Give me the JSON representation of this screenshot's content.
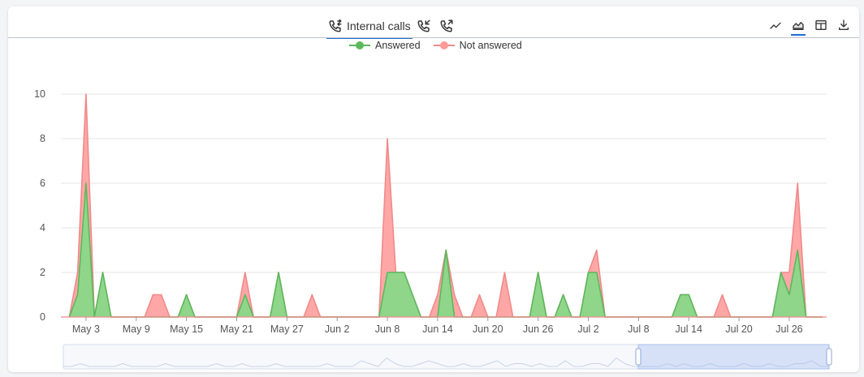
{
  "tabs": [
    {
      "label": "Internal calls",
      "icon": "phone-transfer-icon"
    },
    {
      "label": "",
      "icon": "phone-incoming-icon"
    },
    {
      "label": "",
      "icon": "phone-outgoing-icon"
    }
  ],
  "toolbar": {
    "icons": [
      "line-chart-icon",
      "area-chart-icon",
      "table-icon",
      "download-icon"
    ],
    "active": "area-chart-icon"
  },
  "legend": {
    "answered": "Answered",
    "not_answered": "Not answered"
  },
  "colors": {
    "answered_fill": "#8fd68a",
    "answered_line": "#5cb85c",
    "not_answered_fill": "#ffa7a7",
    "not_answered_line": "#f08a8a",
    "accent": "#1f6fd1"
  },
  "chart_data": {
    "type": "area",
    "stacked": false,
    "x_start_label": "May 1",
    "x": [
      "May 1",
      "May 2",
      "May 3",
      "May 4",
      "May 5",
      "May 6",
      "May 7",
      "May 8",
      "May 9",
      "May 10",
      "May 11",
      "May 12",
      "May 13",
      "May 14",
      "May 15",
      "May 16",
      "May 17",
      "May 18",
      "May 19",
      "May 20",
      "May 21",
      "May 22",
      "May 23",
      "May 24",
      "May 25",
      "May 26",
      "May 27",
      "May 28",
      "May 29",
      "May 30",
      "May 31",
      "Jun 1",
      "Jun 2",
      "Jun 3",
      "Jun 4",
      "Jun 5",
      "Jun 6",
      "Jun 7",
      "Jun 8",
      "Jun 9",
      "Jun 10",
      "Jun 11",
      "Jun 12",
      "Jun 13",
      "Jun 14",
      "Jun 15",
      "Jun 16",
      "Jun 17",
      "Jun 18",
      "Jun 19",
      "Jun 20",
      "Jun 21",
      "Jun 22",
      "Jun 23",
      "Jun 24",
      "Jun 25",
      "Jun 26",
      "Jun 27",
      "Jun 28",
      "Jun 29",
      "Jun 30",
      "Jul 1",
      "Jul 2",
      "Jul 3",
      "Jul 4",
      "Jul 5",
      "Jul 6",
      "Jul 7",
      "Jul 8",
      "Jul 9",
      "Jul 10",
      "Jul 11",
      "Jul 12",
      "Jul 13",
      "Jul 14",
      "Jul 15",
      "Jul 16",
      "Jul 17",
      "Jul 18",
      "Jul 19",
      "Jul 20",
      "Jul 21",
      "Jul 22",
      "Jul 23",
      "Jul 24",
      "Jul 25",
      "Jul 26",
      "Jul 27",
      "Jul 28",
      "Jul 29",
      "Jul 30"
    ],
    "series": [
      {
        "name": "Not answered",
        "values": [
          0,
          2,
          10,
          0,
          2,
          0,
          0,
          0,
          0,
          0,
          1,
          1,
          0,
          0,
          1,
          0,
          0,
          0,
          0,
          0,
          0,
          2,
          0,
          0,
          0,
          2,
          0,
          0,
          0,
          1,
          0,
          0,
          0,
          0,
          0,
          0,
          0,
          0,
          8,
          2,
          2,
          1,
          0,
          0,
          1,
          3,
          1,
          0,
          0,
          1,
          0,
          0,
          2,
          0,
          0,
          0,
          2,
          0,
          0,
          1,
          0,
          0,
          2,
          3,
          0,
          0,
          0,
          0,
          0,
          0,
          0,
          0,
          0,
          1,
          1,
          0,
          0,
          0,
          1,
          0,
          0,
          0,
          0,
          0,
          0,
          2,
          2,
          6,
          0,
          0,
          0
        ]
      },
      {
        "name": "Answered",
        "values": [
          0,
          1,
          6,
          0,
          2,
          0,
          0,
          0,
          0,
          0,
          0,
          0,
          0,
          0,
          1,
          0,
          0,
          0,
          0,
          0,
          0,
          1,
          0,
          0,
          0,
          2,
          0,
          0,
          0,
          0,
          0,
          0,
          0,
          0,
          0,
          0,
          0,
          0,
          2,
          2,
          2,
          1,
          0,
          0,
          0,
          3,
          0,
          0,
          0,
          0,
          0,
          0,
          0,
          0,
          0,
          0,
          2,
          0,
          0,
          1,
          0,
          0,
          2,
          2,
          0,
          0,
          0,
          0,
          0,
          0,
          0,
          0,
          0,
          1,
          1,
          0,
          0,
          0,
          0,
          0,
          0,
          0,
          0,
          0,
          0,
          2,
          1,
          3,
          0,
          0,
          0
        ]
      }
    ],
    "y_ticks": [
      0,
      2,
      4,
      6,
      8,
      10
    ],
    "ylim": [
      0,
      10
    ],
    "x_tick_labels": [
      "May 3",
      "May 9",
      "May 15",
      "May 21",
      "May 27",
      "Jun 2",
      "Jun 8",
      "Jun 14",
      "Jun 20",
      "Jun 26",
      "Jul 2",
      "Jul 8",
      "Jul 14",
      "Jul 20",
      "Jul 26"
    ],
    "grid": true,
    "legend_position": "top-center"
  }
}
